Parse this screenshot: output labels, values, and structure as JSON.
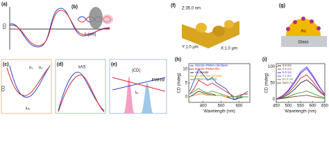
{
  "panels": {
    "a": {
      "label": "(a)",
      "y_label": "CD",
      "x_label": "λ (nm)"
    },
    "b": {
      "label": "(b)"
    },
    "c": {
      "label": "(c)",
      "y_label": "CD",
      "n1": "n₁",
      "n2": "n₂",
      "lambda": "λₘ"
    },
    "d": {
      "label": "(d)",
      "lambda": "λAS"
    },
    "e": {
      "label": "(e)",
      "cd": "|CD|",
      "fwhm": "FWHM",
      "lambda": "λ₀"
    },
    "f": {
      "label": "(f)",
      "z": "Z:35.0 nm",
      "y": "Y:1.0 μm",
      "x": "X:1.0 μm"
    },
    "g": {
      "label": "(g)",
      "metal": "Au",
      "substrate": "Glass"
    }
  },
  "chart_data": [
    {
      "type": "line",
      "panel": "(h)",
      "x_label": "Wavelength (nm)",
      "y_label": "CD (mdeg)",
      "x": [
        325,
        350,
        375,
        400,
        425,
        450,
        475,
        500,
        525,
        550,
        575,
        600,
        625,
        650
      ],
      "xlim": [
        320,
        660
      ],
      "xticks": [
        400,
        500,
        600
      ],
      "ylim": [
        -2,
        12
      ],
      "yticks": [
        0,
        5,
        10
      ],
      "legend": "upper left",
      "series": [
        {
          "name": "Islands+PMMA+riboflavin",
          "color": "#2b3fd6",
          "values": [
            2,
            6,
            10,
            8,
            6,
            7,
            5,
            4,
            3,
            1,
            -1,
            0,
            1,
            2
          ]
        },
        {
          "name": "Islands+PMMA film",
          "color": "#d62828",
          "values": [
            1,
            3,
            6,
            5,
            4,
            5,
            4,
            3,
            2,
            1,
            0,
            0.5,
            1,
            1
          ]
        },
        {
          "name": "Au islands",
          "color": "#222222",
          "values": [
            0,
            1,
            2,
            1.5,
            1,
            1,
            0.5,
            0.5,
            0,
            -0.5,
            -1,
            -0.5,
            0,
            0
          ]
        },
        {
          "name": "Au after film removal",
          "color": "#f08c00",
          "values": [
            0,
            0.5,
            1,
            1,
            0.5,
            0.5,
            0.5,
            0.5,
            0,
            0,
            0,
            0,
            0,
            0
          ]
        },
        {
          "name": "PMMA+riboflavin",
          "color": "#2e9e2e",
          "values": [
            1,
            2,
            3,
            2,
            1.5,
            2,
            1.5,
            1,
            0.5,
            0,
            0,
            0,
            0,
            0
          ]
        }
      ]
    },
    {
      "type": "line",
      "panel": "(i)",
      "x_label": "Wavelength (nm)",
      "y_label": "CD (mdeg)",
      "x": [
        450,
        475,
        500,
        525,
        550,
        575,
        600,
        625,
        650
      ],
      "xlim": [
        450,
        650
      ],
      "xticks": [
        450,
        500,
        550,
        600,
        650
      ],
      "ylim": [
        -10,
        110
      ],
      "yticks": [
        0,
        50,
        100
      ],
      "legend": "upper left",
      "series": [
        {
          "name": "0.8 nm",
          "color": "#222222",
          "values": [
            0,
            5,
            15,
            30,
            50,
            60,
            45,
            25,
            10
          ]
        },
        {
          "name": "2.9 nm",
          "color": "#d62828",
          "values": [
            0,
            8,
            20,
            40,
            65,
            75,
            55,
            30,
            12
          ]
        },
        {
          "name": "5.0 nm",
          "color": "#2b3fd6",
          "values": [
            0,
            10,
            25,
            50,
            80,
            95,
            70,
            40,
            15
          ]
        },
        {
          "name": "7.1 nm",
          "color": "#8a2be2",
          "values": [
            0,
            10,
            28,
            55,
            85,
            100,
            75,
            42,
            15
          ]
        },
        {
          "name": "20.2 nm",
          "color": "#2e9e2e",
          "values": [
            0,
            3,
            8,
            15,
            20,
            25,
            18,
            10,
            5
          ]
        },
        {
          "name": "Bare Au",
          "color": "#7a4a1a",
          "values": [
            0,
            2,
            5,
            8,
            10,
            12,
            8,
            5,
            2
          ]
        }
      ]
    }
  ]
}
